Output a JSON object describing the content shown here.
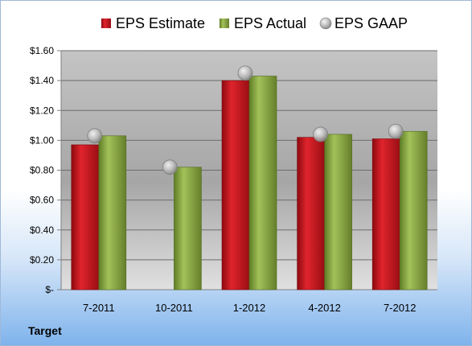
{
  "company_label": "Target",
  "chart_data": {
    "type": "bar",
    "categories": [
      "7-2011",
      "10-2011",
      "1-2012",
      "4-2012",
      "7-2012"
    ],
    "series": [
      {
        "name": "EPS Estimate",
        "kind": "bar",
        "color": "#c0141c",
        "values": [
          0.97,
          null,
          1.4,
          1.02,
          1.01
        ]
      },
      {
        "name": "EPS Actual",
        "kind": "bar",
        "color": "#8bab44",
        "values": [
          1.03,
          0.82,
          1.43,
          1.04,
          1.06
        ]
      },
      {
        "name": "EPS GAAP",
        "kind": "marker",
        "color": "#b8b8b8",
        "values": [
          1.03,
          0.82,
          1.45,
          1.04,
          1.06
        ]
      }
    ],
    "yticks": [
      "$1.60",
      "$1.40",
      "$1.20",
      "$1.00",
      "$0.80",
      "$0.60",
      "$0.40",
      "$0.20",
      "$-"
    ],
    "ylim": [
      0,
      1.6
    ],
    "grid": true,
    "legend_position": "top"
  }
}
